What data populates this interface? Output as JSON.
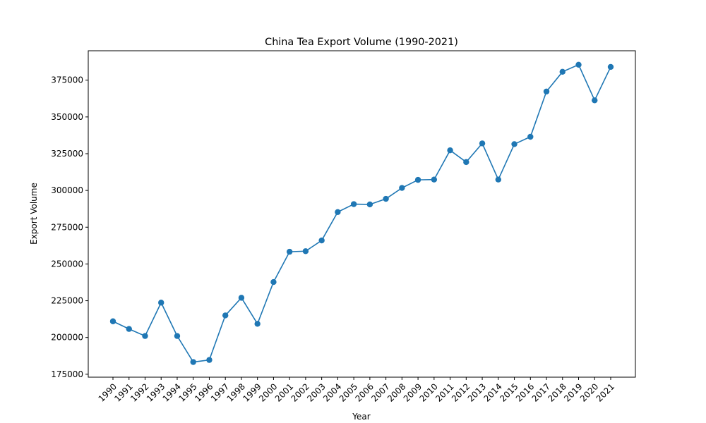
{
  "chart_data": {
    "type": "line",
    "title": "China Tea Export Volume (1990-2021)",
    "xlabel": "Year",
    "ylabel": "Export Volume",
    "x": [
      1990,
      1991,
      1992,
      1993,
      1994,
      1995,
      1996,
      1997,
      1998,
      1999,
      2000,
      2001,
      2002,
      2003,
      2004,
      2005,
      2006,
      2007,
      2008,
      2009,
      2010,
      2011,
      2012,
      2013,
      2014,
      2015,
      2016,
      2017,
      2018,
      2019,
      2020,
      2021
    ],
    "series": [
      {
        "values": [
          211000,
          205800,
          201000,
          223700,
          201000,
          183300,
          184700,
          215000,
          227000,
          209300,
          237700,
          258300,
          258700,
          266000,
          285300,
          290700,
          290500,
          294300,
          301700,
          307200,
          307400,
          327300,
          319300,
          332000,
          307400,
          331500,
          336500,
          367300,
          380700,
          385500,
          361300,
          384000
        ]
      }
    ],
    "ylim": [
      173000,
      395000
    ],
    "yticks": [
      175000,
      200000,
      225000,
      250000,
      275000,
      300000,
      325000,
      350000,
      375000
    ],
    "grid": false,
    "color": "#1f77b4"
  }
}
